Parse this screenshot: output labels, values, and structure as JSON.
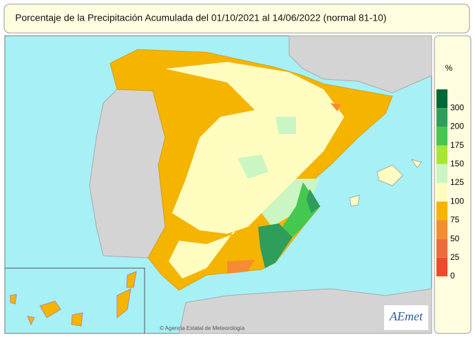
{
  "header": {
    "title": "Porcentaje de la Precipitación Acumulada del 01/10/2021 al 14/06/2022 (normal 81-10)"
  },
  "legend": {
    "unit": "%",
    "classes": [
      {
        "label": "300",
        "color": "#006837"
      },
      {
        "label": "200",
        "color": "#2e9e5a"
      },
      {
        "label": "175",
        "color": "#45c850"
      },
      {
        "label": "150",
        "color": "#a8e632"
      },
      {
        "label": "125",
        "color": "#ccf5c4"
      },
      {
        "label": "100",
        "color": "#fffcc0"
      },
      {
        "label": "75",
        "color": "#f5b400"
      },
      {
        "label": "50",
        "color": "#f58c32"
      },
      {
        "label": "25",
        "color": "#f06a3c"
      },
      {
        "label": "0",
        "color": "#f04a2a"
      }
    ]
  },
  "credit": "© Agencia Estatal de Meteorología",
  "logo": "AEmet"
}
